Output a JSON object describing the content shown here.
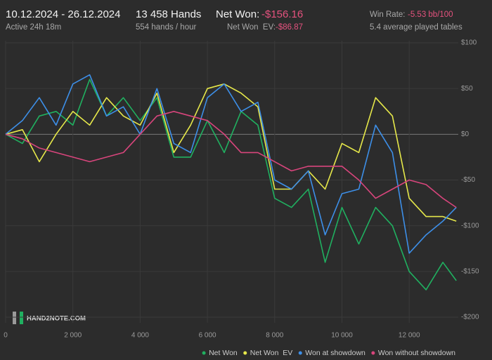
{
  "header": {
    "date_range": "10.12.2024 - 26.12.2024",
    "active": "Active 24h 18m",
    "hands": "13 458 Hands",
    "hands_per_hour": "554 hands / hour",
    "net_won_label": "Net Won:",
    "net_won": "-$156.16",
    "net_won_ev_label": "Net Won  EV:",
    "net_won_ev": "-$86.87",
    "win_rate_label": "Win Rate:",
    "win_rate": "-5.53 bb/100",
    "tables": "5.4 average played tables",
    "logo": "HAND2NOTE.COM"
  },
  "chart_data": {
    "type": "line",
    "grid": true,
    "x": [
      0,
      500,
      1000,
      1500,
      2000,
      2500,
      3000,
      3500,
      4000,
      4500,
      5000,
      5500,
      6000,
      6500,
      7000,
      7500,
      8000,
      8500,
      9000,
      9500,
      10000,
      10500,
      11000,
      11500,
      12000,
      12500,
      13000,
      13400
    ],
    "xlim": [
      0,
      13458
    ],
    "xticks": [
      0,
      {
        "value": 2000,
        "label": "2 000"
      },
      {
        "value": 4000,
        "label": "4 000"
      },
      {
        "value": 6000,
        "label": "6 000"
      },
      {
        "value": 8000,
        "label": "8 000"
      },
      {
        "value": 10000,
        "label": "10 000"
      },
      {
        "value": 12000,
        "label": "12 000"
      }
    ],
    "ylim": [
      -200,
      100
    ],
    "yticks": [
      {
        "value": 100,
        "label": "$100"
      },
      {
        "value": 50,
        "label": "$50"
      },
      {
        "value": 0,
        "label": "$0"
      },
      {
        "value": -50,
        "label": "-$50"
      },
      {
        "value": -100,
        "label": "-$100"
      },
      {
        "value": -150,
        "label": "-$150"
      },
      {
        "value": -200,
        "label": "-$200"
      }
    ],
    "series": [
      {
        "name": "Net Won",
        "color": "#20b060",
        "values": [
          0,
          -10,
          20,
          25,
          10,
          60,
          20,
          40,
          15,
          40,
          -25,
          -25,
          15,
          -20,
          25,
          10,
          -70,
          -80,
          -60,
          -140,
          -80,
          -120,
          -80,
          -100,
          -150,
          -170,
          -140,
          -160
        ]
      },
      {
        "name": "Net Won  EV",
        "color": "#e6e84a",
        "values": [
          0,
          5,
          -30,
          0,
          25,
          10,
          40,
          20,
          10,
          45,
          -20,
          10,
          50,
          55,
          45,
          30,
          -60,
          -60,
          -40,
          -60,
          -10,
          -20,
          40,
          20,
          -70,
          -90,
          -90,
          -95
        ]
      },
      {
        "name": "Won at showdown",
        "color": "#3d8fe8",
        "values": [
          0,
          15,
          40,
          10,
          55,
          65,
          20,
          30,
          0,
          50,
          -10,
          -20,
          40,
          55,
          25,
          35,
          -50,
          -60,
          -40,
          -110,
          -65,
          -60,
          10,
          -20,
          -130,
          -110,
          -95,
          -80
        ]
      },
      {
        "name": "Won without showdown",
        "color": "#d8457c",
        "values": [
          0,
          -5,
          -15,
          -20,
          -25,
          -30,
          -25,
          -20,
          0,
          20,
          25,
          20,
          15,
          0,
          -20,
          -20,
          -30,
          -40,
          -35,
          -35,
          -35,
          -50,
          -70,
          -60,
          -50,
          -55,
          -70,
          -80
        ]
      }
    ]
  }
}
